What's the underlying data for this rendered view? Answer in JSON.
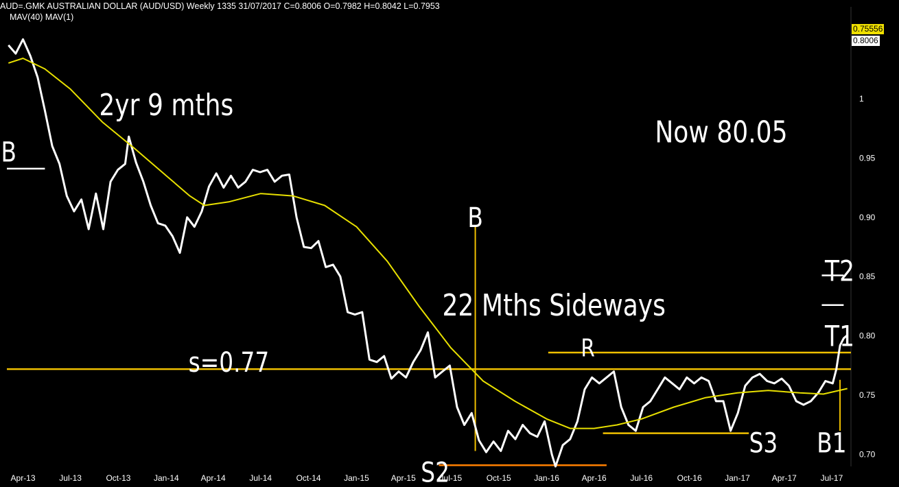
{
  "header": {
    "title": "AUD=.GMK AUSTRALIAN DOLLAR (AUD/USD) Weekly 1335 31/07/2017 C=0.8006 O=0.7982 H=0.8042 L=0.7953",
    "indicators": "MAV(40) MAV(1)",
    "ma_price_label": "0.75556",
    "last_price_label": "0.8006"
  },
  "colors": {
    "background": "#000000",
    "price": "#ffffff",
    "moving_average": "#e8e000",
    "annotation_lines": "#f0c000",
    "support_s2": "#ff8000"
  },
  "chart_data": {
    "type": "line",
    "title": "AUD=.GMK AUSTRALIAN DOLLAR (AUD/USD) Weekly 1335 31/07/2017 C=0.8006 O=0.7982 H=0.8042 L=0.7953",
    "x_ticks": [
      "Apr-13",
      "Jul-13",
      "Oct-13",
      "Jan-14",
      "Apr-14",
      "Jul-14",
      "Oct-14",
      "Jan-15",
      "Apr-15",
      "Jul-15",
      "Oct-15",
      "Jan-16",
      "Apr-16",
      "Jul-16",
      "Oct-16",
      "Jan-17",
      "Apr-17",
      "Jul-17"
    ],
    "x_range": [
      "2013-03-01",
      "2017-08-07"
    ],
    "y_ticks": [
      "1",
      "0.95",
      "0.90",
      "0.85",
      "0.80",
      "0.75",
      "0.70"
    ],
    "ylim": [
      0.69,
      1.06
    ],
    "y_axis_side": "right",
    "grid": false,
    "series": [
      {
        "name": "MAV(1)",
        "points": [
          [
            "2013-03-04",
            1.045
          ],
          [
            "2013-03-18",
            1.038
          ],
          [
            "2013-04-01",
            1.05
          ],
          [
            "2013-04-15",
            1.036
          ],
          [
            "2013-04-29",
            1.018
          ],
          [
            "2013-05-13",
            0.99
          ],
          [
            "2013-05-27",
            0.96
          ],
          [
            "2013-06-10",
            0.945
          ],
          [
            "2013-06-24",
            0.918
          ],
          [
            "2013-07-08",
            0.905
          ],
          [
            "2013-07-22",
            0.915
          ],
          [
            "2013-08-05",
            0.89
          ],
          [
            "2013-08-19",
            0.92
          ],
          [
            "2013-09-02",
            0.89
          ],
          [
            "2013-09-16",
            0.93
          ],
          [
            "2013-09-30",
            0.94
          ],
          [
            "2013-10-14",
            0.945
          ],
          [
            "2013-10-21",
            0.968
          ],
          [
            "2013-11-04",
            0.946
          ],
          [
            "2013-11-18",
            0.93
          ],
          [
            "2013-12-02",
            0.91
          ],
          [
            "2013-12-16",
            0.895
          ],
          [
            "2013-12-30",
            0.893
          ],
          [
            "2014-01-13",
            0.884
          ],
          [
            "2014-01-27",
            0.87
          ],
          [
            "2014-02-10",
            0.9
          ],
          [
            "2014-02-24",
            0.892
          ],
          [
            "2014-03-10",
            0.905
          ],
          [
            "2014-03-24",
            0.926
          ],
          [
            "2014-04-07",
            0.937
          ],
          [
            "2014-04-21",
            0.925
          ],
          [
            "2014-05-05",
            0.935
          ],
          [
            "2014-05-19",
            0.925
          ],
          [
            "2014-06-02",
            0.93
          ],
          [
            "2014-06-16",
            0.94
          ],
          [
            "2014-06-30",
            0.938
          ],
          [
            "2014-07-14",
            0.94
          ],
          [
            "2014-07-28",
            0.93
          ],
          [
            "2014-08-11",
            0.935
          ],
          [
            "2014-08-25",
            0.936
          ],
          [
            "2014-09-08",
            0.9
          ],
          [
            "2014-09-22",
            0.875
          ],
          [
            "2014-10-06",
            0.874
          ],
          [
            "2014-10-20",
            0.88
          ],
          [
            "2014-11-03",
            0.858
          ],
          [
            "2014-11-17",
            0.86
          ],
          [
            "2014-12-01",
            0.85
          ],
          [
            "2014-12-15",
            0.82
          ],
          [
            "2014-12-29",
            0.818
          ],
          [
            "2015-01-12",
            0.82
          ],
          [
            "2015-01-26",
            0.78
          ],
          [
            "2015-02-09",
            0.778
          ],
          [
            "2015-02-23",
            0.783
          ],
          [
            "2015-03-09",
            0.764
          ],
          [
            "2015-03-23",
            0.77
          ],
          [
            "2015-04-06",
            0.765
          ],
          [
            "2015-04-20",
            0.778
          ],
          [
            "2015-05-04",
            0.788
          ],
          [
            "2015-05-18",
            0.803
          ],
          [
            "2015-06-01",
            0.765
          ],
          [
            "2015-06-15",
            0.77
          ],
          [
            "2015-06-29",
            0.775
          ],
          [
            "2015-07-13",
            0.74
          ],
          [
            "2015-07-27",
            0.725
          ],
          [
            "2015-08-10",
            0.735
          ],
          [
            "2015-08-24",
            0.712
          ],
          [
            "2015-09-07",
            0.702
          ],
          [
            "2015-09-21",
            0.711
          ],
          [
            "2015-10-05",
            0.703
          ],
          [
            "2015-10-19",
            0.72
          ],
          [
            "2015-11-02",
            0.713
          ],
          [
            "2015-11-16",
            0.725
          ],
          [
            "2015-11-30",
            0.718
          ],
          [
            "2015-12-14",
            0.715
          ],
          [
            "2015-12-28",
            0.728
          ],
          [
            "2016-01-11",
            0.7
          ],
          [
            "2016-01-18",
            0.69
          ],
          [
            "2016-02-01",
            0.708
          ],
          [
            "2016-02-15",
            0.713
          ],
          [
            "2016-02-29",
            0.728
          ],
          [
            "2016-03-14",
            0.755
          ],
          [
            "2016-03-28",
            0.765
          ],
          [
            "2016-04-11",
            0.76
          ],
          [
            "2016-04-25",
            0.765
          ],
          [
            "2016-05-09",
            0.77
          ],
          [
            "2016-05-23",
            0.74
          ],
          [
            "2016-06-06",
            0.725
          ],
          [
            "2016-06-20",
            0.72
          ],
          [
            "2016-07-04",
            0.74
          ],
          [
            "2016-07-18",
            0.745
          ],
          [
            "2016-08-01",
            0.755
          ],
          [
            "2016-08-15",
            0.765
          ],
          [
            "2016-08-29",
            0.76
          ],
          [
            "2016-09-12",
            0.755
          ],
          [
            "2016-09-26",
            0.765
          ],
          [
            "2016-10-10",
            0.76
          ],
          [
            "2016-10-24",
            0.765
          ],
          [
            "2016-11-07",
            0.762
          ],
          [
            "2016-11-21",
            0.745
          ],
          [
            "2016-12-05",
            0.745
          ],
          [
            "2016-12-19",
            0.72
          ],
          [
            "2017-01-02",
            0.735
          ],
          [
            "2017-01-16",
            0.758
          ],
          [
            "2017-01-30",
            0.765
          ],
          [
            "2017-02-13",
            0.768
          ],
          [
            "2017-02-27",
            0.762
          ],
          [
            "2017-03-13",
            0.76
          ],
          [
            "2017-03-27",
            0.764
          ],
          [
            "2017-04-10",
            0.758
          ],
          [
            "2017-04-24",
            0.745
          ],
          [
            "2017-05-08",
            0.742
          ],
          [
            "2017-05-22",
            0.745
          ],
          [
            "2017-06-05",
            0.752
          ],
          [
            "2017-06-19",
            0.762
          ],
          [
            "2017-07-03",
            0.76
          ],
          [
            "2017-07-10",
            0.772
          ],
          [
            "2017-07-17",
            0.792
          ],
          [
            "2017-07-24",
            0.798
          ],
          [
            "2017-07-31",
            0.8006
          ]
        ]
      },
      {
        "name": "MAV(40)",
        "points": [
          [
            "2013-03-04",
            1.03
          ],
          [
            "2013-04-01",
            1.034
          ],
          [
            "2013-05-13",
            1.025
          ],
          [
            "2013-07-01",
            1.008
          ],
          [
            "2013-09-01",
            0.98
          ],
          [
            "2013-11-01",
            0.958
          ],
          [
            "2014-01-01",
            0.935
          ],
          [
            "2014-02-15",
            0.918
          ],
          [
            "2014-03-15",
            0.91
          ],
          [
            "2014-05-01",
            0.913
          ],
          [
            "2014-07-01",
            0.92
          ],
          [
            "2014-09-01",
            0.918
          ],
          [
            "2014-11-01",
            0.91
          ],
          [
            "2015-01-01",
            0.892
          ],
          [
            "2015-03-01",
            0.863
          ],
          [
            "2015-05-01",
            0.825
          ],
          [
            "2015-07-01",
            0.79
          ],
          [
            "2015-09-01",
            0.762
          ],
          [
            "2015-11-01",
            0.745
          ],
          [
            "2016-01-01",
            0.73
          ],
          [
            "2016-02-15",
            0.722
          ],
          [
            "2016-04-01",
            0.722
          ],
          [
            "2016-05-15",
            0.725
          ],
          [
            "2016-07-01",
            0.73
          ],
          [
            "2016-09-01",
            0.74
          ],
          [
            "2016-11-01",
            0.748
          ],
          [
            "2017-01-01",
            0.752
          ],
          [
            "2017-03-01",
            0.754
          ],
          [
            "2017-05-01",
            0.752
          ],
          [
            "2017-06-15",
            0.751
          ],
          [
            "2017-07-31",
            0.7556
          ]
        ]
      }
    ],
    "horizontal_lines": [
      {
        "label": "s=0.77",
        "y": 0.772,
        "from": "2013-03-01",
        "to": "2017-08-07",
        "color": "#f0c000"
      },
      {
        "label": "R",
        "y": 0.786,
        "from": "2016-01-04",
        "to": "2017-08-07",
        "color": "#f0c000"
      },
      {
        "label": "S3",
        "y": 0.718,
        "from": "2016-04-18",
        "to": "2017-01-23",
        "color": "#f0c000"
      },
      {
        "label": "S2",
        "y": 0.691,
        "from": "2015-06-08",
        "to": "2016-04-25",
        "color": "#ff8000"
      },
      {
        "label": "T2",
        "y": 0.851,
        "from": "2017-06-12",
        "to": "2017-07-24",
        "color": "#ffffff"
      },
      {
        "label": "T1",
        "y": 0.826,
        "from": "2017-06-12",
        "to": "2017-07-24",
        "color": "#ffffff"
      },
      {
        "label": "",
        "y": 0.941,
        "from": "2013-03-01",
        "to": "2013-05-13",
        "color": "#ffffff"
      }
    ],
    "vertical_lines": [
      {
        "label": "B",
        "x": "2015-08-17",
        "y_from": 0.703,
        "y_to": 0.893,
        "color": "#f0c000"
      },
      {
        "label": "B1",
        "x": "2017-07-17",
        "y_from": 0.72,
        "y_to": 0.763,
        "color": "#f0c000"
      }
    ],
    "annotations": [
      {
        "text": "2yr 9 mths",
        "x": "2014-01-01",
        "y": 0.995
      },
      {
        "text": "Now 80.05",
        "x": "2016-12-01",
        "y": 0.972
      },
      {
        "text": "22 Mths Sideways",
        "x": "2016-01-15",
        "y": 0.826
      },
      {
        "text": "B",
        "x": "2015-08-17",
        "y": 0.9
      },
      {
        "text": "R",
        "x": "2016-03-20",
        "y": 0.79
      },
      {
        "text": "s=0.77",
        "x": "2014-05-01",
        "y": 0.778
      },
      {
        "text": "S3",
        "x": "2017-02-20",
        "y": 0.71
      },
      {
        "text": "S2",
        "x": "2015-06-01",
        "y": 0.685
      },
      {
        "text": "B1",
        "x": "2017-07-01",
        "y": 0.71
      },
      {
        "text": "T2",
        "x": "2017-08-01",
        "y": 0.855
      },
      {
        "text": "T1",
        "x": "2017-08-01",
        "y": 0.8
      },
      {
        "text": "B",
        "x": "2013-03-01",
        "y": 0.955
      }
    ]
  }
}
